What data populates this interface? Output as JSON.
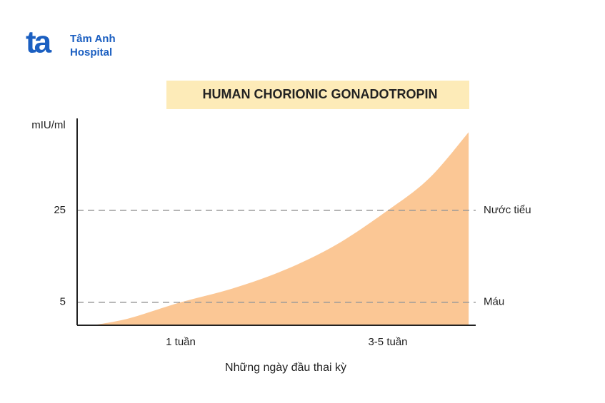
{
  "logo": {
    "mark": "ta",
    "line1": "Tâm Anh",
    "line2": "Hospital"
  },
  "chart_data": {
    "type": "area",
    "title": "HUMAN CHORIONIC GONADOTROPIN",
    "y_label": "mIU/ml",
    "x_label": "Những ngày đầu thai kỳ",
    "x": [
      0.15,
      0.5,
      1,
      1.5,
      2,
      2.5,
      3,
      3.4,
      3.78
    ],
    "values": [
      0,
      1.5,
      5,
      8,
      12,
      17.5,
      25,
      32,
      42
    ],
    "color": "#fbc795",
    "xlim": [
      0,
      3.8
    ],
    "ylim": [
      0,
      45
    ],
    "xticks": [
      {
        "value": 1,
        "label": "1 tuần"
      },
      {
        "value": 3,
        "label": "3-5 tuần"
      }
    ],
    "yticks": [
      5,
      25
    ],
    "reference_lines": [
      {
        "value": 5,
        "label": "Máu"
      },
      {
        "value": 25,
        "label": "Nước tiểu"
      }
    ],
    "grid": false
  }
}
